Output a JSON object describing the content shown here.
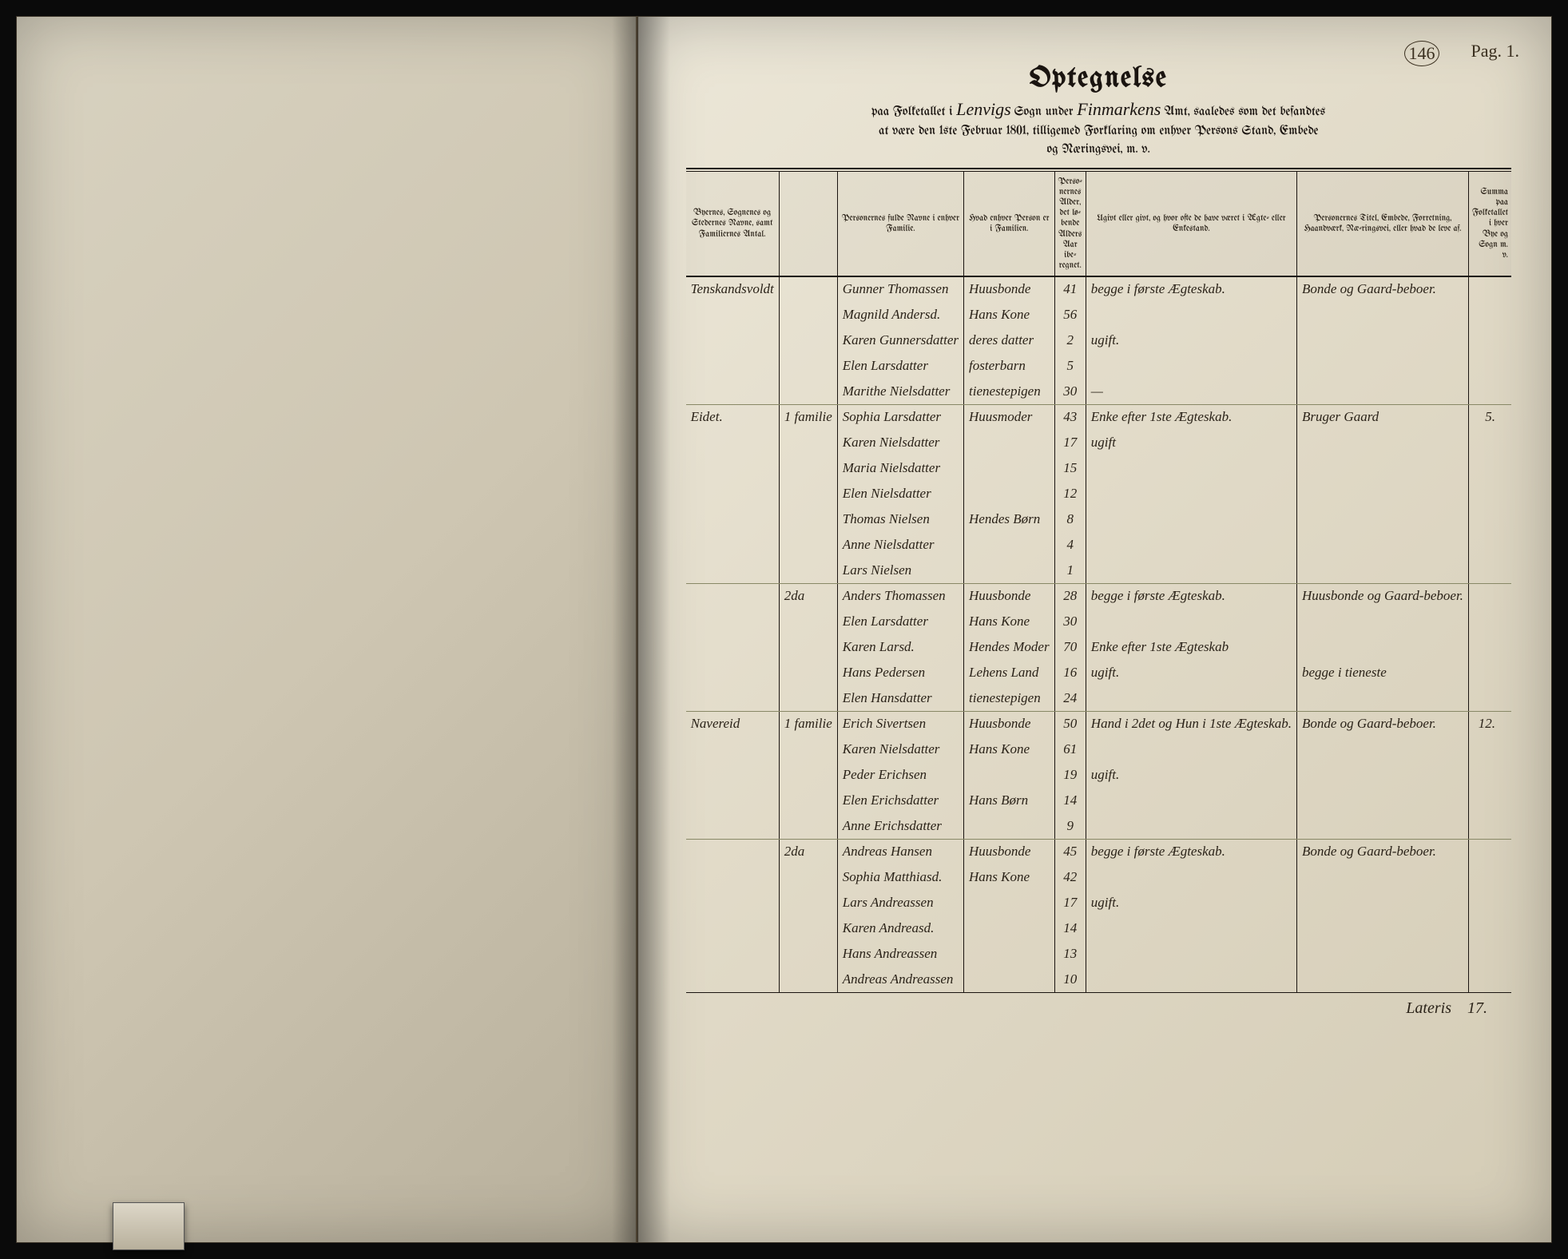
{
  "page_number_circled": "146",
  "page_number_label": "Pag. 1.",
  "title": "Optegnelse",
  "subtitle_pre": "paa Folketallet i ",
  "parish": "Lenvigs",
  "subtitle_mid": " Sogn under ",
  "amt": "Finmarkens",
  "subtitle_post1": " Amt, saaledes som det befandtes",
  "subtitle_line2": "at være den 1ste Februar 1801, tilligemed Forklaring om enhver Persons Stand, Embede",
  "subtitle_line3": "og Næringsvei, m. v.",
  "columns": {
    "place": "Byernes, Sognenes og Stedernes Navne, samt Familiernes Antal.",
    "fam": "",
    "name": "Personernes fulde Navne i enhver Familie.",
    "relation": "Hvad enhver Person er i Familien.",
    "age": "Perso-nernes Alder, det lø-bende Alders Aar ibe-regnet.",
    "marital": "Ugivt eller givt, og hvor ofte de have været i Ægte- eller Enkestand.",
    "occupation": "Personernes Titel, Embede, Forretning, Haandværk, Næ-ringsvei, eller hvad de leve af.",
    "sum": "Summa paa Folketallet i hver Bye og Sogn m. v."
  },
  "rows": [
    {
      "place": "Tenskandsvoldt",
      "fam": "",
      "name": "Gunner Thomassen",
      "rel": "Huusbonde",
      "age": "41",
      "marital": "begge i første Ægteskab.",
      "occ": "Bonde og Gaard-beboer.",
      "sum": ""
    },
    {
      "place": "",
      "fam": "",
      "name": "Magnild Andersd.",
      "rel": "Hans Kone",
      "age": "56",
      "marital": "",
      "occ": "",
      "sum": ""
    },
    {
      "place": "",
      "fam": "",
      "name": "Karen Gunnersdatter",
      "rel": "deres datter",
      "age": "2",
      "marital": "ugift.",
      "occ": "",
      "sum": ""
    },
    {
      "place": "",
      "fam": "",
      "name": "Elen Larsdatter",
      "rel": "fosterbarn",
      "age": "5",
      "marital": "",
      "occ": "",
      "sum": ""
    },
    {
      "place": "",
      "fam": "",
      "name": "Marithe Nielsdatter",
      "rel": "tienestepigen",
      "age": "30",
      "marital": "—",
      "occ": "",
      "sum": ""
    },
    {
      "place": "Eidet.",
      "fam": "1 familie",
      "name": "Sophia Larsdatter",
      "rel": "Huusmoder",
      "age": "43",
      "marital": "Enke efter 1ste Ægteskab.",
      "occ": "Bruger Gaard",
      "sum": "5."
    },
    {
      "place": "",
      "fam": "",
      "name": "Karen Nielsdatter",
      "rel": "",
      "age": "17",
      "marital": "ugift",
      "occ": "",
      "sum": ""
    },
    {
      "place": "",
      "fam": "",
      "name": "Maria Nielsdatter",
      "rel": "",
      "age": "15",
      "marital": "",
      "occ": "",
      "sum": ""
    },
    {
      "place": "",
      "fam": "",
      "name": "Elen Nielsdatter",
      "rel": "",
      "age": "12",
      "marital": "",
      "occ": "",
      "sum": ""
    },
    {
      "place": "",
      "fam": "",
      "name": "Thomas Nielsen",
      "rel": "Hendes Børn",
      "age": "8",
      "marital": "",
      "occ": "",
      "sum": ""
    },
    {
      "place": "",
      "fam": "",
      "name": "Anne Nielsdatter",
      "rel": "",
      "age": "4",
      "marital": "",
      "occ": "",
      "sum": ""
    },
    {
      "place": "",
      "fam": "",
      "name": "Lars Nielsen",
      "rel": "",
      "age": "1",
      "marital": "",
      "occ": "",
      "sum": ""
    },
    {
      "place": "",
      "fam": "2da",
      "name": "Anders Thomassen",
      "rel": "Huusbonde",
      "age": "28",
      "marital": "begge i første Ægteskab.",
      "occ": "Huusbonde og Gaard-beboer.",
      "sum": ""
    },
    {
      "place": "",
      "fam": "",
      "name": "Elen Larsdatter",
      "rel": "Hans Kone",
      "age": "30",
      "marital": "",
      "occ": "",
      "sum": ""
    },
    {
      "place": "",
      "fam": "",
      "name": "Karen Larsd.",
      "rel": "Hendes Moder",
      "age": "70",
      "marital": "Enke efter 1ste Ægteskab",
      "occ": "",
      "sum": ""
    },
    {
      "place": "",
      "fam": "",
      "name": "Hans Pedersen",
      "rel": "Lehens Land",
      "age": "16",
      "marital": "ugift.",
      "occ": "begge i tieneste",
      "sum": ""
    },
    {
      "place": "",
      "fam": "",
      "name": "Elen Hansdatter",
      "rel": "tienestepigen",
      "age": "24",
      "marital": "",
      "occ": "",
      "sum": ""
    },
    {
      "place": "Navereid",
      "fam": "1 familie",
      "name": "Erich Sivertsen",
      "rel": "Huusbonde",
      "age": "50",
      "marital": "Hand i 2det og Hun i 1ste Ægteskab.",
      "occ": "Bonde og Gaard-beboer.",
      "sum": "12."
    },
    {
      "place": "",
      "fam": "",
      "name": "Karen Nielsdatter",
      "rel": "Hans Kone",
      "age": "61",
      "marital": "",
      "occ": "",
      "sum": ""
    },
    {
      "place": "",
      "fam": "",
      "name": "Peder Erichsen",
      "rel": "",
      "age": "19",
      "marital": "ugift.",
      "occ": "",
      "sum": ""
    },
    {
      "place": "",
      "fam": "",
      "name": "Elen Erichsdatter",
      "rel": "Hans Børn",
      "age": "14",
      "marital": "",
      "occ": "",
      "sum": ""
    },
    {
      "place": "",
      "fam": "",
      "name": "Anne Erichsdatter",
      "rel": "",
      "age": "9",
      "marital": "",
      "occ": "",
      "sum": ""
    },
    {
      "place": "",
      "fam": "2da",
      "name": "Andreas Hansen",
      "rel": "Huusbonde",
      "age": "45",
      "marital": "begge i første Ægteskab.",
      "occ": "Bonde og Gaard-beboer.",
      "sum": ""
    },
    {
      "place": "",
      "fam": "",
      "name": "Sophia Matthiasd.",
      "rel": "Hans Kone",
      "age": "42",
      "marital": "",
      "occ": "",
      "sum": ""
    },
    {
      "place": "",
      "fam": "",
      "name": "Lars Andreassen",
      "rel": "",
      "age": "17",
      "marital": "ugift.",
      "occ": "",
      "sum": ""
    },
    {
      "place": "",
      "fam": "",
      "name": "Karen Andreasd.",
      "rel": "",
      "age": "14",
      "marital": "",
      "occ": "",
      "sum": ""
    },
    {
      "place": "",
      "fam": "",
      "name": "Hans Andreassen",
      "rel": "",
      "age": "13",
      "marital": "",
      "occ": "",
      "sum": ""
    },
    {
      "place": "",
      "fam": "",
      "name": "Andreas Andreassen",
      "rel": "",
      "age": "10",
      "marital": "",
      "occ": "",
      "sum": ""
    }
  ],
  "footer_label": "Lateris",
  "footer_total": "17.",
  "line_after": [
    4,
    11,
    16,
    21
  ],
  "sum_map": {
    "5": "5.",
    "17": "12."
  }
}
